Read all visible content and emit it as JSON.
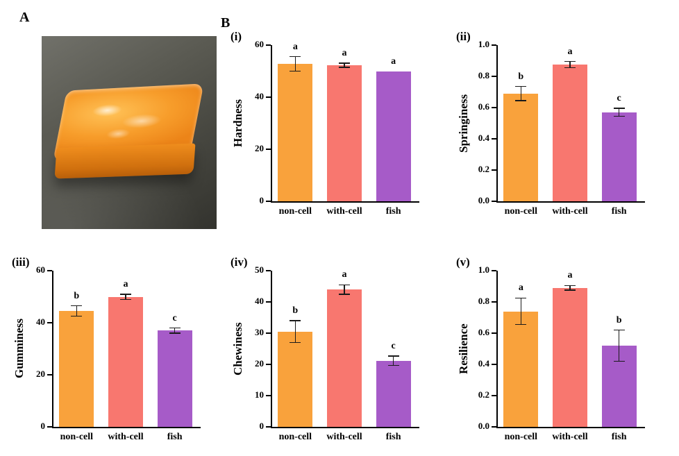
{
  "panels": {
    "a_label": "A",
    "b_label": "B"
  },
  "colors": {
    "non_cell": "#F9A23C",
    "with_cell": "#F8776F",
    "fish": "#A65BC8"
  },
  "photo": {
    "description": "orange gel sample cube on grey surface"
  },
  "chart_data": [
    {
      "type": "bar",
      "panel_label": "(i)",
      "ylabel": "Hardness",
      "categories": [
        "non-cell",
        "with-cell",
        "fish"
      ],
      "values": [
        52.8,
        52.3,
        50.0
      ],
      "errors": [
        2.8,
        0.8,
        0
      ],
      "sig_letters": [
        "a",
        "a",
        "a"
      ],
      "ylim": [
        0,
        60
      ],
      "yticks": [
        "0",
        "20",
        "40",
        "60"
      ],
      "legend": "none",
      "grid": false
    },
    {
      "type": "bar",
      "panel_label": "(ii)",
      "ylabel": "Springiness",
      "categories": [
        "non-cell",
        "with-cell",
        "fish"
      ],
      "values": [
        0.69,
        0.875,
        0.57
      ],
      "errors": [
        0.045,
        0.02,
        0.025
      ],
      "sig_letters": [
        "b",
        "a",
        "c"
      ],
      "ylim": [
        0,
        1.0
      ],
      "yticks": [
        "0.0",
        "0.2",
        "0.4",
        "0.6",
        "0.8",
        "1.0"
      ],
      "legend": "none",
      "grid": false
    },
    {
      "type": "bar",
      "panel_label": "(iii)",
      "ylabel": "Gumminess",
      "categories": [
        "non-cell",
        "with-cell",
        "fish"
      ],
      "values": [
        44.5,
        50.0,
        37.0
      ],
      "errors": [
        2.0,
        1.0,
        1.0
      ],
      "sig_letters": [
        "b",
        "a",
        "c"
      ],
      "ylim": [
        0,
        60
      ],
      "yticks": [
        "0",
        "20",
        "40",
        "60"
      ],
      "legend": "none",
      "grid": false
    },
    {
      "type": "bar",
      "panel_label": "(iv)",
      "ylabel": "Chewiness",
      "categories": [
        "non-cell",
        "with-cell",
        "fish"
      ],
      "values": [
        30.5,
        44.0,
        21.2
      ],
      "errors": [
        3.5,
        1.5,
        1.5
      ],
      "sig_letters": [
        "b",
        "a",
        "c"
      ],
      "ylim": [
        0,
        50
      ],
      "yticks": [
        "0",
        "10",
        "20",
        "30",
        "40",
        "50"
      ],
      "legend": "none",
      "grid": false
    },
    {
      "type": "bar",
      "panel_label": "(v)",
      "ylabel": "Resilience",
      "categories": [
        "non-cell",
        "with-cell",
        "fish"
      ],
      "values": [
        0.74,
        0.89,
        0.52
      ],
      "errors": [
        0.085,
        0.015,
        0.1
      ],
      "sig_letters": [
        "a",
        "a",
        "b"
      ],
      "ylim": [
        0,
        1.0
      ],
      "yticks": [
        "0.0",
        "0.2",
        "0.4",
        "0.6",
        "0.8",
        "1.0"
      ],
      "legend": "none",
      "grid": false
    }
  ]
}
